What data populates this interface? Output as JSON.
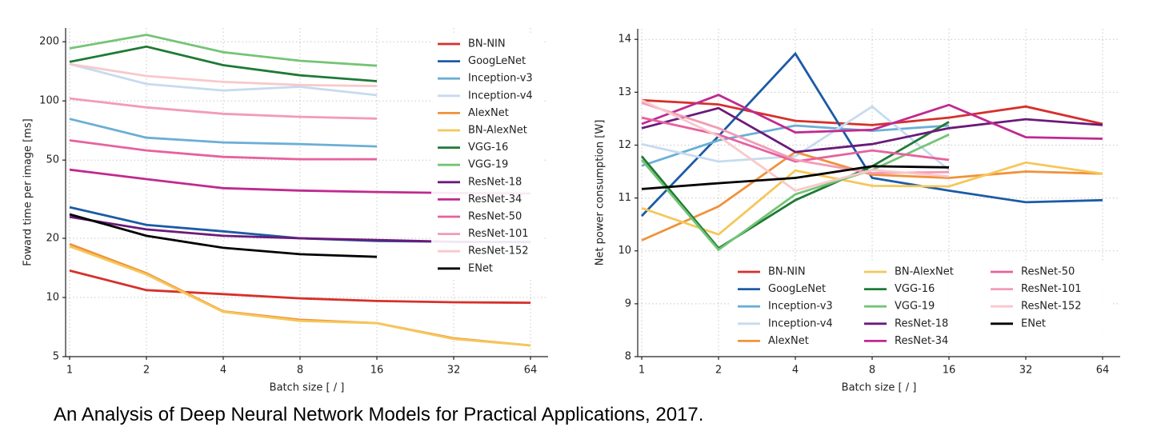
{
  "chart_data": [
    {
      "type": "line",
      "ylabel": "Foward time per image [ms]",
      "xlabel": "Batch size [ / ]",
      "x": [
        1,
        2,
        4,
        8,
        16,
        32,
        64
      ],
      "xticks": [
        1,
        2,
        4,
        8,
        16,
        32,
        64
      ],
      "xlog": true,
      "ylog": true,
      "xlim": [
        1,
        64
      ],
      "ylim": [
        5,
        235
      ],
      "yticks": [
        5,
        10,
        20,
        50,
        100,
        200
      ],
      "grid": true,
      "legend": "upper right",
      "legend_columns": 1,
      "series": [
        {
          "name": "BN-NIN",
          "color": "#d6302b",
          "values": [
            13.7,
            10.9,
            10.4,
            9.9,
            9.6,
            9.45,
            9.4
          ]
        },
        {
          "name": "GoogLeNet",
          "color": "#1c5ba5",
          "values": [
            28.8,
            23.4,
            21.7,
            20,
            19.4,
            19.2,
            19.2
          ]
        },
        {
          "name": "Inception-v3",
          "color": "#6baed6",
          "values": [
            81,
            65,
            61.5,
            60.3,
            58.7,
            null,
            null
          ]
        },
        {
          "name": "Inception-v4",
          "color": "#c6dbef",
          "values": [
            154,
            122,
            113,
            118,
            107,
            null,
            null
          ]
        },
        {
          "name": "AlexNet",
          "color": "#f0923a",
          "values": [
            18.7,
            13.3,
            8.5,
            7.7,
            7.4,
            6.2,
            5.7
          ]
        },
        {
          "name": "BN-AlexNet",
          "color": "#f5c75a",
          "values": [
            18.2,
            13.1,
            8.45,
            7.6,
            7.4,
            6.15,
            5.7
          ]
        },
        {
          "name": "VGG-16",
          "color": "#1e7a35",
          "values": [
            158,
            189,
            152,
            135,
            126,
            null,
            null
          ]
        },
        {
          "name": "VGG-19",
          "color": "#74c476",
          "values": [
            185,
            217,
            177,
            160,
            151,
            null,
            null
          ]
        },
        {
          "name": "ResNet-18",
          "color": "#6a1a7a",
          "values": [
            25.7,
            22.2,
            20.6,
            20,
            19.6,
            19.2,
            19.1
          ]
        },
        {
          "name": "ResNet-34",
          "color": "#c0298f",
          "values": [
            44.7,
            40,
            36,
            35,
            34.4,
            34,
            33.8
          ]
        },
        {
          "name": "ResNet-50",
          "color": "#e7619e",
          "values": [
            63,
            56,
            51.9,
            50.5,
            50.5,
            null,
            null
          ]
        },
        {
          "name": "ResNet-101",
          "color": "#f29bb7",
          "values": [
            103,
            92.7,
            86,
            83,
            81.3,
            null,
            null
          ]
        },
        {
          "name": "ResNet-152",
          "color": "#f9c8cc",
          "values": [
            154,
            134,
            125,
            120.5,
            119,
            null,
            null
          ]
        },
        {
          "name": "ENet",
          "color": "#000000",
          "values": [
            26.5,
            20.6,
            17.9,
            16.6,
            16.1,
            null,
            null
          ]
        }
      ]
    },
    {
      "type": "line",
      "ylabel": "Net power consumption [W]",
      "xlabel": "Batch size [ / ]",
      "x": [
        1,
        2,
        4,
        8,
        16,
        32,
        64
      ],
      "xticks": [
        1,
        2,
        4,
        8,
        16,
        32,
        64
      ],
      "xlog": true,
      "ylog": false,
      "xlim": [
        1,
        64
      ],
      "ylim": [
        8,
        14.2
      ],
      "yticks": [
        8,
        9,
        10,
        11,
        12,
        13,
        14
      ],
      "grid": true,
      "legend": "lower right",
      "legend_columns": 3,
      "series": [
        {
          "name": "BN-NIN",
          "color": "#d6302b",
          "values": [
            12.85,
            12.77,
            12.46,
            12.38,
            12.52,
            12.73,
            12.4
          ]
        },
        {
          "name": "GoogLeNet",
          "color": "#1c5ba5",
          "values": [
            10.66,
            12.17,
            13.73,
            11.38,
            11.14,
            10.92,
            10.96
          ]
        },
        {
          "name": "Inception-v3",
          "color": "#6baed6",
          "values": [
            11.61,
            12.09,
            12.37,
            12.27,
            12.37,
            null,
            null
          ]
        },
        {
          "name": "Inception-v4",
          "color": "#c6dbef",
          "values": [
            12.02,
            11.69,
            11.79,
            12.73,
            11.53,
            null,
            null
          ]
        },
        {
          "name": "AlexNet",
          "color": "#f0923a",
          "values": [
            10.2,
            10.84,
            11.87,
            11.44,
            11.38,
            11.5,
            11.46
          ]
        },
        {
          "name": "BN-AlexNet",
          "color": "#f5c75a",
          "values": [
            10.81,
            10.31,
            11.52,
            11.23,
            11.22,
            11.67,
            11.46
          ]
        },
        {
          "name": "VGG-16",
          "color": "#1e7a35",
          "values": [
            11.79,
            10.05,
            10.96,
            11.6,
            12.44,
            null,
            null
          ]
        },
        {
          "name": "VGG-19",
          "color": "#74c476",
          "values": [
            11.72,
            10.02,
            11.07,
            11.53,
            12.2,
            null,
            null
          ]
        },
        {
          "name": "ResNet-18",
          "color": "#6a1a7a",
          "values": [
            12.32,
            12.7,
            11.87,
            12.02,
            12.32,
            12.49,
            12.38
          ]
        },
        {
          "name": "ResNet-34",
          "color": "#c0298f",
          "values": [
            12.4,
            12.95,
            12.24,
            12.29,
            12.76,
            12.15,
            12.12
          ]
        },
        {
          "name": "ResNet-50",
          "color": "#e7619e",
          "values": [
            12.52,
            12.2,
            11.69,
            11.9,
            11.72,
            null,
            null
          ]
        },
        {
          "name": "ResNet-101",
          "color": "#f29bb7",
          "values": [
            12.8,
            12.32,
            11.72,
            11.47,
            11.49,
            null,
            null
          ]
        },
        {
          "name": "ResNet-152",
          "color": "#f9c8cc",
          "values": [
            12.85,
            12.17,
            11.14,
            11.53,
            11.41,
            null,
            null
          ]
        },
        {
          "name": "ENet",
          "color": "#000000",
          "values": [
            11.17,
            11.28,
            11.38,
            11.6,
            11.58,
            null,
            null
          ]
        }
      ]
    }
  ],
  "caption": "An Analysis of Deep Neural Network Models for Practical Applications, 2017."
}
